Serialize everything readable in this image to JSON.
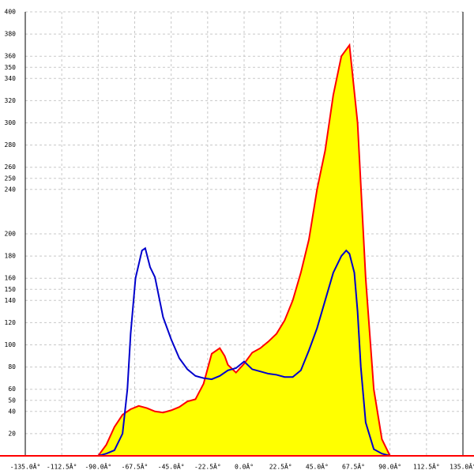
{
  "chart_data": {
    "type": "area",
    "xlim": [
      -135,
      135
    ],
    "xticks": [
      {
        "value": -135,
        "label": "-135.0Â°"
      },
      {
        "value": -112.5,
        "label": "-112.5Â°"
      },
      {
        "value": -90,
        "label": "-90.0Â°"
      },
      {
        "value": -67.5,
        "label": "-67.5Â°"
      },
      {
        "value": -45,
        "label": "-45.0Â°"
      },
      {
        "value": -22.5,
        "label": "-22.5Â°"
      },
      {
        "value": 0,
        "label": "0.0Â°"
      },
      {
        "value": 22.5,
        "label": "22.5Â°"
      },
      {
        "value": 45,
        "label": "45.0Â°"
      },
      {
        "value": 67.5,
        "label": "67.5Â°"
      },
      {
        "value": 90,
        "label": "90.0Â°"
      },
      {
        "value": 112.5,
        "label": "112.5Â°"
      },
      {
        "value": 135,
        "label": "135.0Â°"
      }
    ],
    "ylim": [
      0,
      400
    ],
    "yticks": [
      20,
      40,
      50,
      60,
      80,
      100,
      120,
      140,
      150,
      160,
      180,
      200,
      240,
      250,
      260,
      280,
      300,
      320,
      340,
      350,
      360,
      380,
      400
    ],
    "grid": true,
    "series": [
      {
        "color": "#ff0000",
        "fill": "#ffff00",
        "x": [
          -90,
          -85,
          -80,
          -75,
          -70,
          -65,
          -60,
          -55,
          -50,
          -45,
          -40,
          -35,
          -30,
          -25,
          -20,
          -15,
          -12,
          -10,
          -5,
          0,
          5,
          10,
          15,
          20,
          25,
          30,
          35,
          40,
          45,
          50,
          55,
          60,
          65,
          70,
          75,
          80,
          85,
          90
        ],
        "values": [
          0,
          10,
          26,
          37,
          42,
          45,
          43,
          40,
          39,
          41,
          44,
          49,
          51,
          65,
          92,
          97,
          90,
          82,
          75,
          83,
          93,
          97,
          103,
          110,
          122,
          140,
          165,
          195,
          240,
          275,
          325,
          360,
          370,
          300,
          160,
          60,
          15,
          0
        ]
      },
      {
        "color": "#0000cc",
        "x": [
          -90,
          -85,
          -80,
          -75,
          -72,
          -70,
          -67,
          -63,
          -61,
          -58,
          -55,
          -50,
          -45,
          -40,
          -35,
          -30,
          -25,
          -20,
          -15,
          -10,
          -5,
          0,
          5,
          10,
          15,
          20,
          25,
          30,
          35,
          40,
          45,
          50,
          55,
          60,
          63,
          65,
          68,
          70,
          72,
          75,
          80,
          85,
          90
        ],
        "values": [
          0,
          2,
          5,
          20,
          60,
          110,
          160,
          185,
          187,
          170,
          161,
          125,
          105,
          88,
          78,
          72,
          70,
          69,
          72,
          77,
          79,
          85,
          78,
          76,
          74,
          73,
          71,
          71,
          77,
          95,
          115,
          140,
          165,
          180,
          185,
          182,
          165,
          130,
          80,
          30,
          6,
          2,
          0
        ]
      }
    ]
  }
}
